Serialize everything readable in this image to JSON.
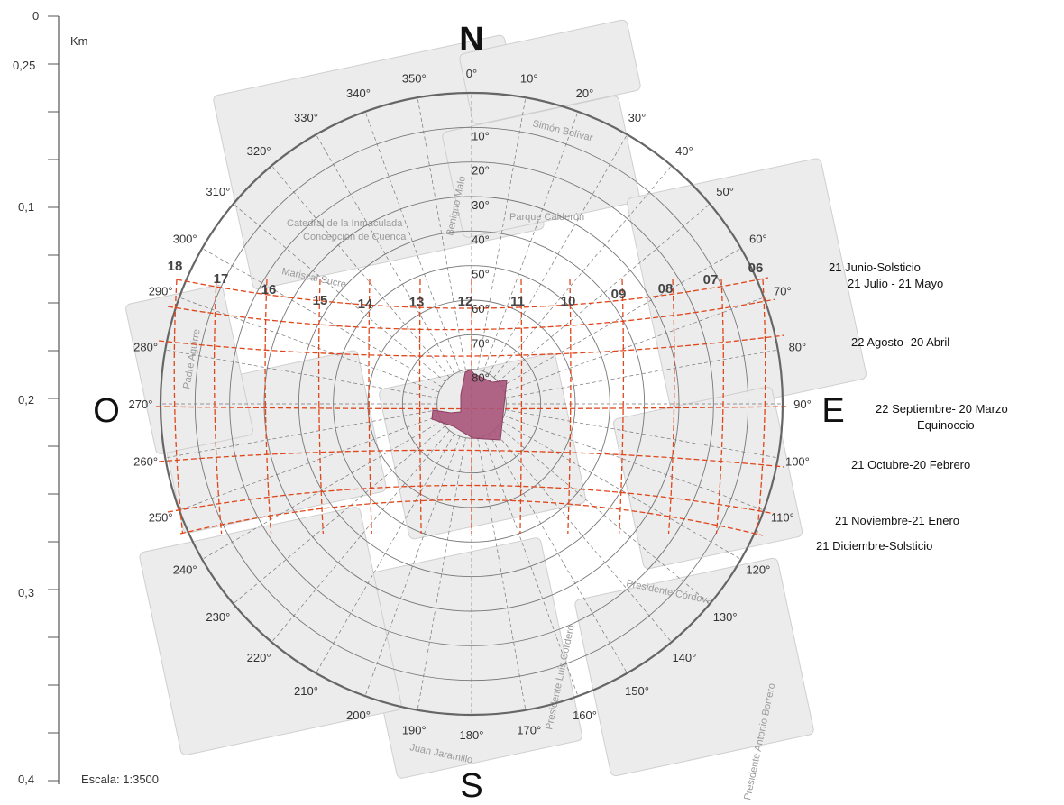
{
  "scale": {
    "unit": "Km",
    "ticks": [
      "0",
      "0,25",
      "0,1",
      "0,2",
      "0,3",
      "0,4"
    ],
    "caption": "Escala: 1:3500"
  },
  "cardinals": {
    "north": "N",
    "south": "S",
    "east": "E",
    "west": "O"
  },
  "azimuths": [
    "0°",
    "10°",
    "20°",
    "30°",
    "40°",
    "50°",
    "60°",
    "70°",
    "80°",
    "90°",
    "100°",
    "110°",
    "120°",
    "130°",
    "140°",
    "150°",
    "160°",
    "170°",
    "180°",
    "190°",
    "200°",
    "210°",
    "220°",
    "230°",
    "240°",
    "250°",
    "260°",
    "270°",
    "280°",
    "290°",
    "300°",
    "310°",
    "320°",
    "330°",
    "340°",
    "350°"
  ],
  "altitudes": [
    "10°",
    "20°",
    "30°",
    "40°",
    "50°",
    "60°",
    "70°",
    "80°"
  ],
  "hours": [
    "06",
    "07",
    "08",
    "09",
    "10",
    "11",
    "12",
    "13",
    "14",
    "15",
    "16",
    "17",
    "18"
  ],
  "date_lines": [
    {
      "label": "21 Junio-Solsticio"
    },
    {
      "label": "21 Julio - 21 Mayo"
    },
    {
      "label": "22 Agosto- 20 Abril"
    },
    {
      "label": "22 Septiembre- 20 Marzo"
    },
    {
      "label": "Equinoccio"
    },
    {
      "label": "21 Octubre-20 Febrero"
    },
    {
      "label": "21 Noviembre-21 Enero"
    },
    {
      "label": "21 Diciembre-Solsticio"
    }
  ],
  "streets": [
    "Simón Bolívar",
    "Benigno Malo",
    "Parque Calderón",
    "Catedral de la Inmaculada",
    "Concepción de Cuenca",
    "Mariscal Sucre",
    "Padre Aguirre",
    "Presidente Córdova",
    "Presidente Luis Cordero",
    "Juan Jaramillo",
    "Presidente Antonio Borrero"
  ],
  "colors": {
    "sun_path": "#e0461b",
    "building": "#a8557a",
    "block_fill": "#ececec",
    "block_stroke": "#cfcfcf",
    "grid": "#777777",
    "outer_ring": "#666666"
  }
}
